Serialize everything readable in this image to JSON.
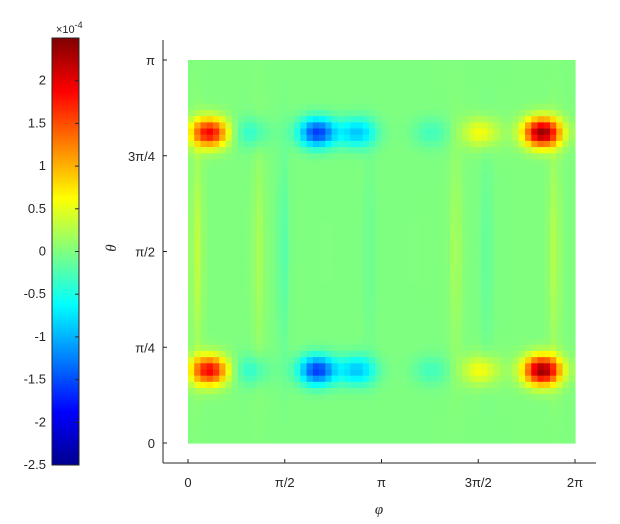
{
  "chart_data": {
    "type": "heatmap",
    "title": "",
    "xlabel": "φ",
    "ylabel": "θ",
    "xlim": [
      0,
      6.2832
    ],
    "ylim": [
      0,
      3.1416
    ],
    "x_ticks": [
      {
        "value": 0,
        "label": "0"
      },
      {
        "value": 1.5708,
        "label": "π/2"
      },
      {
        "value": 3.1416,
        "label": "π"
      },
      {
        "value": 4.7124,
        "label": "3π/2"
      },
      {
        "value": 6.2832,
        "label": "2π"
      }
    ],
    "y_ticks": [
      {
        "value": 0,
        "label": "0"
      },
      {
        "value": 0.7854,
        "label": "π/4"
      },
      {
        "value": 1.5708,
        "label": "π/2"
      },
      {
        "value": 2.3562,
        "label": "3π/4"
      },
      {
        "value": 3.1416,
        "label": "π"
      }
    ],
    "colorbar": {
      "colormap": "jet",
      "clim": [
        -2.5,
        2.5
      ],
      "multiplier": "×10",
      "exponent": "-4",
      "ticks": [
        {
          "value": 2,
          "label": "2"
        },
        {
          "value": 1.5,
          "label": "1.5"
        },
        {
          "value": 1,
          "label": "1"
        },
        {
          "value": 0.5,
          "label": "0.5"
        },
        {
          "value": 0,
          "label": "0"
        },
        {
          "value": -0.5,
          "label": "-0.5"
        },
        {
          "value": -1,
          "label": "-1"
        },
        {
          "value": -1.5,
          "label": "-1.5"
        },
        {
          "value": -2,
          "label": "-2"
        },
        {
          "value": -2.5,
          "label": "-2.5"
        }
      ]
    },
    "field_features": {
      "background_value": 0.0,
      "theta_bands": [
        0.6,
        2.55
      ],
      "phi_features": [
        {
          "phi": 0.35,
          "value": 1.9
        },
        {
          "phi": 1.0,
          "value": -0.4
        },
        {
          "phi": 2.1,
          "value": -1.6
        },
        {
          "phi": 2.75,
          "value": -0.9
        },
        {
          "phi": 3.95,
          "value": -0.3
        },
        {
          "phi": 4.75,
          "value": 0.6
        },
        {
          "phi": 5.75,
          "value": 2.4
        }
      ],
      "vertical_stripes": [
        {
          "phi": 0.15,
          "value": 0.6
        },
        {
          "phi": 1.15,
          "value": 0.4
        },
        {
          "phi": 1.55,
          "value": -0.4
        },
        {
          "phi": 2.95,
          "value": -0.2
        },
        {
          "phi": 4.35,
          "value": 0.4
        },
        {
          "phi": 4.85,
          "value": -0.3
        },
        {
          "phi": 5.95,
          "value": 0.5
        }
      ]
    }
  }
}
